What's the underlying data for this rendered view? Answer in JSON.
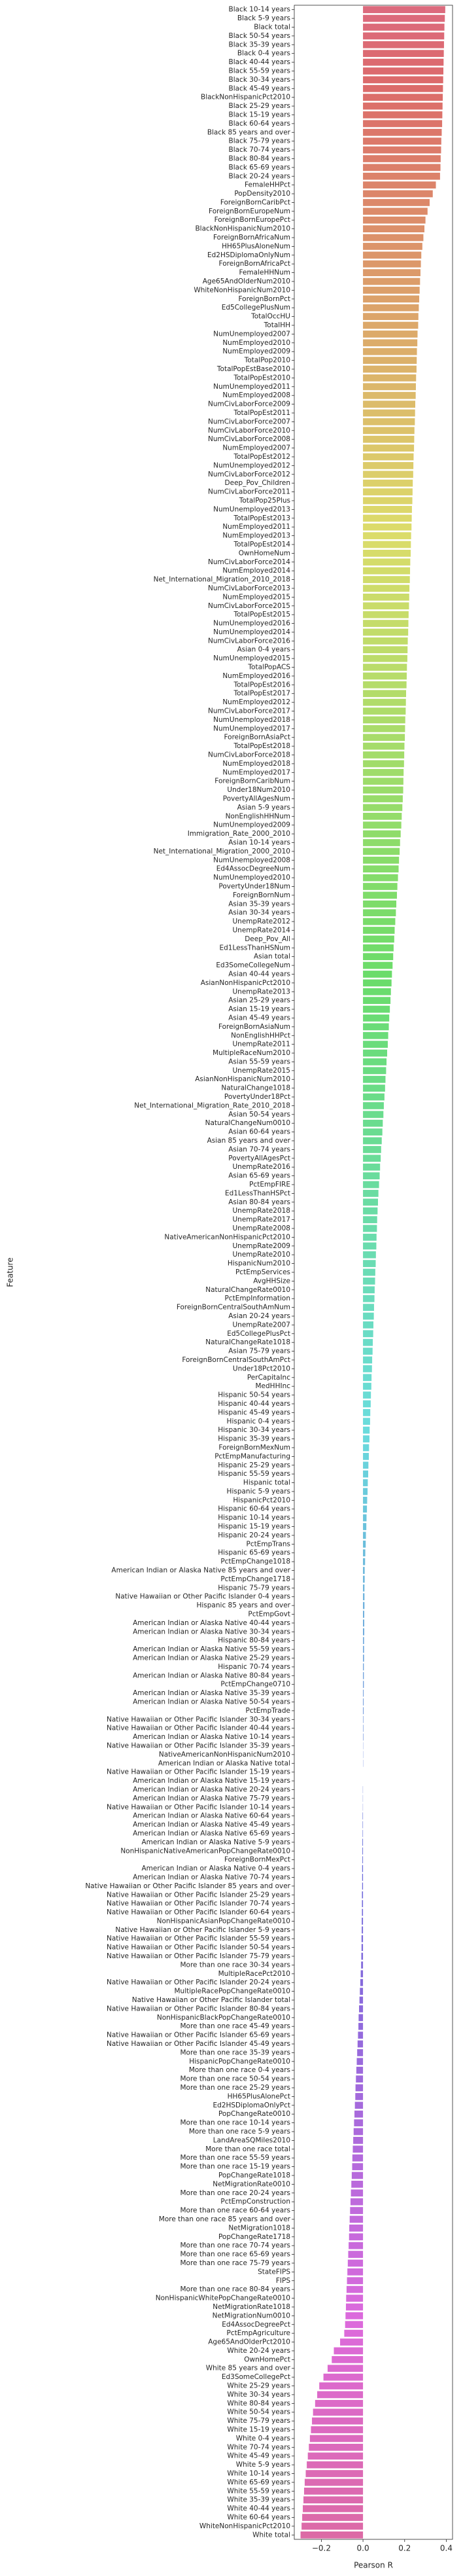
{
  "chart_data": {
    "type": "barh",
    "xlabel": "Pearson R",
    "ylabel": "Feature",
    "palette": "husl",
    "xlim": [
      -0.33,
      0.43
    ],
    "xticks": [
      {
        "value": -0.2,
        "label": "−0.2"
      },
      {
        "value": 0.0,
        "label": "0.0"
      },
      {
        "value": 0.2,
        "label": "0.2"
      },
      {
        "value": 0.4,
        "label": "0.4"
      }
    ],
    "categories": [
      "Black 10-14 years",
      "Black 5-9 years",
      "Black total",
      "Black 50-54 years",
      "Black 35-39 years",
      "Black 0-4 years",
      "Black 40-44 years",
      "Black 55-59 years",
      "Black 30-34 years",
      "Black 45-49 years",
      "BlackNonHispanicPct2010",
      "Black 25-29 years",
      "Black 15-19 years",
      "Black 60-64 years",
      "Black 85 years and over",
      "Black 75-79 years",
      "Black 70-74 years",
      "Black 80-84 years",
      "Black 65-69 years",
      "Black 20-24 years",
      "FemaleHHPct",
      "PopDensity2010",
      "ForeignBornCaribPct",
      "ForeignBornEuropeNum",
      "ForeignBornEuropePct",
      "BlackNonHispanicNum2010",
      "ForeignBornAfricaNum",
      "HH65PlusAloneNum",
      "Ed2HSDiplomaOnlyNum",
      "ForeignBornAfricaPct",
      "FemaleHHNum",
      "Age65AndOlderNum2010",
      "WhiteNonHispanicNum2010",
      "ForeignBornPct",
      "Ed5CollegePlusNum",
      "TotalOccHU",
      "TotalHH",
      "NumUnemployed2007",
      "NumEmployed2010",
      "NumEmployed2009",
      "TotalPop2010",
      "TotalPopEstBase2010",
      "TotalPopEst2010",
      "NumUnemployed2011",
      "NumEmployed2008",
      "NumCivLaborForce2009",
      "TotalPopEst2011",
      "NumCivLaborForce2007",
      "NumCivLaborForce2010",
      "NumCivLaborForce2008",
      "NumEmployed2007",
      "TotalPopEst2012",
      "NumUnemployed2012",
      "NumCivLaborForce2012",
      "Deep_Pov_Children",
      "NumCivLaborForce2011",
      "TotalPop25Plus",
      "NumUnemployed2013",
      "TotalPopEst2013",
      "NumEmployed2011",
      "NumEmployed2013",
      "TotalPopEst2014",
      "OwnHomeNum",
      "NumCivLaborForce2014",
      "NumEmployed2014",
      "Net_International_Migration_2010_2018",
      "NumCivLaborForce2013",
      "NumEmployed2015",
      "NumCivLaborForce2015",
      "TotalPopEst2015",
      "NumUnemployed2016",
      "NumUnemployed2014",
      "NumCivLaborForce2016",
      "Asian 0-4 years",
      "NumUnemployed2015",
      "TotalPopACS",
      "NumEmployed2016",
      "TotalPopEst2016",
      "TotalPopEst2017",
      "NumEmployed2012",
      "NumCivLaborForce2017",
      "NumUnemployed2018",
      "NumUnemployed2017",
      "ForeignBornAsiaPct",
      "TotalPopEst2018",
      "NumCivLaborForce2018",
      "NumEmployed2018",
      "NumEmployed2017",
      "ForeignBornCaribNum",
      "Under18Num2010",
      "PovertyAllAgesNum",
      "Asian 5-9 years",
      "NonEnglishHHNum",
      "NumUnemployed2009",
      "Immigration_Rate_2000_2010",
      "Asian 10-14 years",
      "Net_International_Migration_2000_2010",
      "NumUnemployed2008",
      "Ed4AssocDegreeNum",
      "NumUnemployed2010",
      "PovertyUnder18Num",
      "ForeignBornNum",
      "Asian 35-39 years",
      "Asian 30-34 years",
      "UnempRate2012",
      "UnempRate2014",
      "Deep_Pov_All",
      "Ed1LessThanHSNum",
      "Asian total",
      "Ed3SomeCollegeNum",
      "Asian 40-44 years",
      "AsianNonHispanicPct2010",
      "UnempRate2013",
      "Asian 25-29 years",
      "Asian 15-19 years",
      "Asian 45-49 years",
      "ForeignBornAsiaNum",
      "NonEnglishHHPct",
      "UnempRate2011",
      "MultipleRaceNum2010",
      "Asian 55-59 years",
      "UnempRate2015",
      "AsianNonHispanicNum2010",
      "NaturalChange1018",
      "PovertyUnder18Pct",
      "Net_International_Migration_Rate_2010_2018",
      "Asian 50-54 years",
      "NaturalChangeNum0010",
      "Asian 60-64 years",
      "Asian 85 years and over",
      "Asian 70-74 years",
      "PovertyAllAgesPct",
      "UnempRate2016",
      "Asian 65-69 years",
      "PctEmpFIRE",
      "Ed1LessThanHSPct",
      "Asian 80-84 years",
      "UnempRate2018",
      "UnempRate2017",
      "UnempRate2008",
      "NativeAmericanNonHispanicPct2010",
      "UnempRate2009",
      "UnempRate2010",
      "HispanicNum2010",
      "PctEmpServices",
      "AvgHHSize",
      "NaturalChangeRate0010",
      "PctEmpInformation",
      "ForeignBornCentralSouthAmNum",
      "Asian 20-24 years",
      "UnempRate2007",
      "Ed5CollegePlusPct",
      "NaturalChangeRate1018",
      "Asian 75-79 years",
      "ForeignBornCentralSouthAmPct",
      "Under18Pct2010",
      "PerCapitaInc",
      "MedHHInc",
      "Hispanic 50-54 years",
      "Hispanic 40-44 years",
      "Hispanic 45-49 years",
      "Hispanic 0-4 years",
      "Hispanic 30-34 years",
      "Hispanic 35-39 years",
      "ForeignBornMexNum",
      "PctEmpManufacturing",
      "Hispanic 25-29 years",
      "Hispanic 55-59 years",
      "Hispanic total",
      "Hispanic 5-9 years",
      "HispanicPct2010",
      "Hispanic 60-64 years",
      "Hispanic 10-14 years",
      "Hispanic 15-19 years",
      "Hispanic 20-24 years",
      "PctEmpTrans",
      "Hispanic 65-69 years",
      "PctEmpChange1018",
      "American Indian or Alaska Native 85 years and over",
      "PctEmpChange1718",
      "Hispanic 75-79 years",
      "Native Hawaiian or Other Pacific Islander 0-4 years",
      "Hispanic 85 years and over",
      "PctEmpGovt",
      "American Indian or Alaska Native 40-44 years",
      "American Indian or Alaska Native 30-34 years",
      "Hispanic 80-84 years",
      "American Indian or Alaska Native 55-59 years",
      "American Indian or Alaska Native 25-29 years",
      "Hispanic 70-74 years",
      "American Indian or Alaska Native 80-84 years",
      "PctEmpChange0710",
      "American Indian or Alaska Native 35-39 years",
      "American Indian or Alaska Native 50-54 years",
      "PctEmpTrade",
      "Native Hawaiian or Other Pacific Islander 30-34 years",
      "Native Hawaiian or Other Pacific Islander 40-44 years",
      "American Indian or Alaska Native 10-14 years",
      "Native Hawaiian or Other Pacific Islander 35-39 years",
      "NativeAmericanNonHispanicNum2010",
      "American Indian or Alaska Native total",
      "Native Hawaiian or Other Pacific Islander 15-19 years",
      "American Indian or Alaska Native 15-19 years",
      "American Indian or Alaska Native 20-24 years",
      "American Indian or Alaska Native 75-79 years",
      "Native Hawaiian or Other Pacific Islander 10-14 years",
      "American Indian or Alaska Native 60-64 years",
      "American Indian or Alaska Native 45-49 years",
      "American Indian or Alaska Native 65-69 years",
      "American Indian or Alaska Native 5-9 years",
      "NonHispanicNativeAmericanPopChangeRate0010",
      "ForeignBornMexPct",
      "American Indian or Alaska Native 0-4 years",
      "American Indian or Alaska Native 70-74 years",
      "Native Hawaiian or Other Pacific Islander 85 years and over",
      "Native Hawaiian or Other Pacific Islander 25-29 years",
      "Native Hawaiian or Other Pacific Islander 70-74 years",
      "Native Hawaiian or Other Pacific Islander 60-64 years",
      "NonHispanicAsianPopChangeRate0010",
      "Native Hawaiian or Other Pacific Islander 5-9 years",
      "Native Hawaiian or Other Pacific Islander 55-59 years",
      "Native Hawaiian or Other Pacific Islander 50-54 years",
      "Native Hawaiian or Other Pacific Islander 75-79 years",
      "More than one race 30-34 years",
      "MultipleRacePct2010",
      "Native Hawaiian or Other Pacific Islander 20-24 years",
      "MultipleRacePopChangeRate0010",
      "Native Hawaiian or Other Pacific Islander total",
      "Native Hawaiian or Other Pacific Islander 80-84 years",
      "NonHispanicBlackPopChangeRate0010",
      "More than one race 45-49 years",
      "Native Hawaiian or Other Pacific Islander 65-69 years",
      "Native Hawaiian or Other Pacific Islander 45-49 years",
      "More than one race 35-39 years",
      "HispanicPopChangeRate0010",
      "More than one race 0-4 years",
      "More than one race 50-54 years",
      "More than one race 25-29 years",
      "HH65PlusAlonePct",
      "Ed2HSDiplomaOnlyPct",
      "PopChangeRate0010",
      "More than one race 10-14 years",
      "More than one race 5-9 years",
      "LandAreaSQMiles2010",
      "More than one race total",
      "More than one race 55-59 years",
      "More than one race 15-19 years",
      "PopChangeRate1018",
      "NetMigrationRate0010",
      "More than one race 20-24 years",
      "PctEmpConstruction",
      "More than one race 60-64 years",
      "More than one race 85 years and over",
      "NetMigration1018",
      "PopChangeRate1718",
      "More than one race 70-74 years",
      "More than one race 65-69 years",
      "More than one race 75-79 years",
      "StateFIPS",
      "FIPS",
      "More than one race 80-84 years",
      "NonHispanicWhitePopChangeRate0010",
      "NetMigrationRate1018",
      "NetMigrationNum0010",
      "Ed4AssocDegreePct",
      "PctEmpAgriculture",
      "Age65AndOlderPct2010",
      "White 20-24 years",
      "OwnHomePct",
      "White 85 years and over",
      "Ed3SomeCollegePct",
      "White 25-29 years",
      "White 30-34 years",
      "White 80-84 years",
      "White 50-54 years",
      "White 75-79 years",
      "White 15-19 years",
      "White 0-4 years",
      "White 70-74 years",
      "White 45-49 years",
      "White 5-9 years",
      "White 10-14 years",
      "White 65-69 years",
      "White 55-59 years",
      "White 35-39 years",
      "White 40-44 years",
      "White 60-64 years",
      "WhiteNonHispanicPct2010",
      "White total"
    ],
    "values": [
      0.395,
      0.393,
      0.391,
      0.39,
      0.389,
      0.388,
      0.387,
      0.386,
      0.385,
      0.384,
      0.383,
      0.382,
      0.381,
      0.38,
      0.378,
      0.376,
      0.375,
      0.373,
      0.372,
      0.37,
      0.35,
      0.335,
      0.32,
      0.31,
      0.3,
      0.295,
      0.29,
      0.285,
      0.28,
      0.278,
      0.276,
      0.274,
      0.272,
      0.27,
      0.268,
      0.266,
      0.265,
      0.262,
      0.261,
      0.259,
      0.258,
      0.257,
      0.255,
      0.254,
      0.253,
      0.251,
      0.25,
      0.249,
      0.247,
      0.246,
      0.245,
      0.243,
      0.242,
      0.241,
      0.239,
      0.238,
      0.237,
      0.235,
      0.234,
      0.233,
      0.231,
      0.23,
      0.229,
      0.227,
      0.226,
      0.225,
      0.223,
      0.222,
      0.221,
      0.219,
      0.218,
      0.217,
      0.215,
      0.214,
      0.213,
      0.211,
      0.21,
      0.209,
      0.207,
      0.206,
      0.205,
      0.203,
      0.202,
      0.201,
      0.199,
      0.198,
      0.197,
      0.195,
      0.194,
      0.193,
      0.191,
      0.189,
      0.186,
      0.184,
      0.181,
      0.178,
      0.176,
      0.173,
      0.171,
      0.168,
      0.165,
      0.163,
      0.16,
      0.158,
      0.155,
      0.152,
      0.15,
      0.147,
      0.145,
      0.142,
      0.139,
      0.137,
      0.134,
      0.132,
      0.129,
      0.126,
      0.124,
      0.121,
      0.119,
      0.116,
      0.113,
      0.111,
      0.108,
      0.106,
      0.103,
      0.1,
      0.098,
      0.095,
      0.093,
      0.09,
      0.087,
      0.085,
      0.082,
      0.08,
      0.077,
      0.074,
      0.072,
      0.07,
      0.068,
      0.067,
      0.065,
      0.064,
      0.062,
      0.061,
      0.059,
      0.058,
      0.056,
      0.055,
      0.053,
      0.052,
      0.05,
      0.049,
      0.047,
      0.046,
      0.044,
      0.043,
      0.041,
      0.04,
      0.038,
      0.037,
      0.035,
      0.034,
      0.032,
      0.031,
      0.029,
      0.028,
      0.026,
      0.025,
      0.023,
      0.022,
      0.02,
      0.019,
      0.017,
      0.016,
      0.014,
      0.013,
      0.011,
      0.01,
      0.008,
      0.008,
      0.007,
      0.007,
      0.007,
      0.006,
      0.006,
      0.006,
      0.005,
      0.005,
      0.005,
      0.004,
      0.004,
      0.004,
      0.003,
      0.003,
      0.003,
      0.002,
      0.002,
      0.002,
      0.001,
      0.001,
      0.001,
      0,
      0,
      -0.001,
      -0.001,
      -0.001,
      -0.002,
      -0.002,
      -0.002,
      -0.003,
      -0.003,
      -0.003,
      -0.004,
      -0.004,
      -0.004,
      -0.005,
      -0.005,
      -0.005,
      -0.006,
      -0.006,
      -0.007,
      -0.007,
      -0.008,
      -0.009,
      -0.011,
      -0.013,
      -0.015,
      -0.017,
      -0.019,
      -0.021,
      -0.022,
      -0.024,
      -0.026,
      -0.028,
      -0.03,
      -0.032,
      -0.034,
      -0.036,
      -0.037,
      -0.039,
      -0.041,
      -0.043,
      -0.045,
      -0.047,
      -0.049,
      -0.051,
      -0.052,
      -0.054,
      -0.056,
      -0.058,
      -0.06,
      -0.062,
      -0.064,
      -0.066,
      -0.067,
      -0.069,
      -0.071,
      -0.073,
      -0.075,
      -0.077,
      -0.079,
      -0.081,
      -0.082,
      -0.084,
      -0.086,
      -0.09,
      -0.11,
      -0.14,
      -0.15,
      -0.17,
      -0.19,
      -0.21,
      -0.22,
      -0.23,
      -0.24,
      -0.245,
      -0.25,
      -0.255,
      -0.26,
      -0.265,
      -0.27,
      -0.275,
      -0.28,
      -0.283,
      -0.286,
      -0.289,
      -0.292,
      -0.295,
      -0.3
    ]
  }
}
